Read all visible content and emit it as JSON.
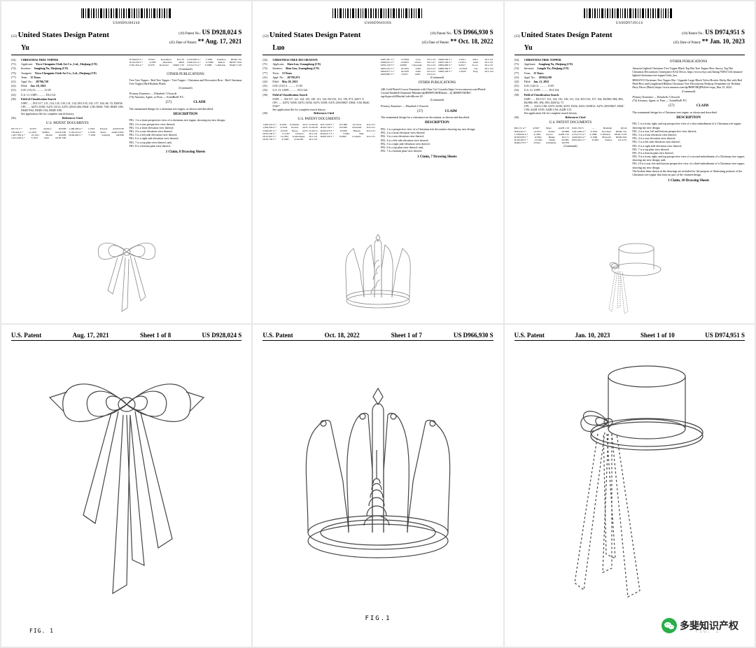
{
  "patents": [
    {
      "barcode_num": "US00D928024S",
      "country": "United States Design Patent",
      "inventor_last": "Yu",
      "patent_no_label": "(10) Patent No.:",
      "patent_no": "US D928,024 S",
      "date_label": "(45) Date of Patent:",
      "date": "** Aug. 17, 2021",
      "title": "CHRISTMAS TREE TOPPER",
      "applicant": "Yiwu Chengmin Cloth Art Co., Ltd., Zhejiang (CN)",
      "inventor": "Songfang Yu, Zhejiang (CN)",
      "assignee": "Yiwu Chengmin Cloth Art Co., Ltd., Zhejiang (CN)",
      "term": "15 Years",
      "appl_no": "29/766,728",
      "filed": "Jan. 18, 2021",
      "loc": "LOC (13) Cl. .......... 11-05",
      "uscl": "U.S. Cl. USPC .......... D11/121",
      "fcs_label": "Field of Classification Search",
      "fcs": "USPC ..... D11/117, 121, 124, 125, 130, 131, 132; D11/133, 142, 157, 164, 66, 74; D28/56",
      "cpc": "CPC ..... A47G 33/00; A47G 33/12; A47G 2033/1266; D04C 1/00; D04C 7/00; D04D 1/00; D04D 9/02; D04D 1/04; D04D 3/00",
      "other_hdr": "OTHER PUBLICATIONS",
      "other": "Tree Tree Topper - Red Tree Topper - Tree Topper - Christmas and Decorative Bow - Red Christmas Tree Topper (Red Buffalo Plaid)",
      "examiner": "Primary Examiner — Elizabeth J Oswecki",
      "attorney": "(74) Attorney, Agent, or Firm — ScienBiziP, P.C.",
      "claim_hdr": "CLAIM",
      "claim": "The ornamental design for a christmas tree topper, as shown and described.",
      "desc_hdr": "DESCRIPTION",
      "desc": [
        "FIG. 1 is a front perspective view of a christmas tree topper, showing my new design;",
        "FIG. 2 is a rear perspective view thereof;",
        "FIG. 3 is a front elevation view thereof;",
        "FIG. 4 is a rear elevation view thereof;",
        "FIG. 5 is a left side elevation view thereof;",
        "FIG. 6 is a right side elevation view thereof;",
        "FIG. 7 is a top plan view thereof; and,",
        "FIG. 8 is a bottom plan view thereof."
      ],
      "claims_sheets": "1 Claim, 8 Drawing Sheets",
      "refs_hdr": "References Cited",
      "refs_sub": "U.S. PATENT DOCUMENTS",
      "refs": [
        [
          "D5,751 S *",
          "4/1872",
          "Wallace",
          "................",
          "D2/608"
        ],
        [
          "195,826 A *",
          "12/1847",
          "Shiffler",
          "................",
          "A41D 6/00"
        ],
        [
          "1,007,786 A *",
          "10/1911",
          "Martin",
          "................",
          "D2/608"
        ],
        [
          "1,651,428 A *",
          "5/1913",
          "Statz",
          "................",
          "A41B 3/00"
        ],
        [
          "1,480,406 A *",
          "1/1924",
          "Preston",
          "................",
          "A45D 8/36"
        ],
        [
          "2,185,416 A *",
          "1/1938",
          "Platts",
          "................",
          "A44D 2/002"
        ],
        [
          "D166,628 S *",
          "7/1950",
          "Salzberg",
          "................",
          "D8/388"
        ],
        [
          "D126,843 S *",
          "9/1941",
          "Rosenman",
          "................",
          "D11/76"
        ],
        [
          "D142,239 S *",
          "4/1907",
          "Oberman",
          "................",
          "428/9"
        ],
        [
          "3,391,264 A *",
          "3/1970",
          "Rowland",
          "................",
          "D04D 7/10"
        ],
        [
          "4,139,938 A *",
          "7/1982",
          "Kamiryo",
          "................",
          "D04D 7/10"
        ],
        [
          "4,566,192 A *",
          "11/1986",
          "Killow",
          "................",
          "B65D 73/16"
        ],
        [
          "4,724,175 A *",
          "3/1988",
          "LaMourie",
          "................",
          "B44D 7/105"
        ]
      ],
      "sheet_header_left": "U.S. Patent",
      "sheet_date": "Aug. 17, 2021",
      "sheet_info": "Sheet 1 of 8",
      "sheet_patno": "US D928,024 S",
      "fig_label": "FIG. 1"
    },
    {
      "barcode_num": "US00D966930S",
      "country": "United States Design Patent",
      "inventor_last": "Luo",
      "patent_no_label": "(10) Patent No.:",
      "patent_no": "US D966,930 S",
      "date_label": "(45) Date of Patent:",
      "date": "** Oct. 18, 2022",
      "title": "CHRISTMAS TREE DECORATION",
      "applicant": "Shen Luo, Guangdong (CN)",
      "inventor": "Shen Luo, Guangdong (CN)",
      "term": "15 Years",
      "appl_no": "29/785,973",
      "filed": "May 28, 2021",
      "loc": "LOC (13) Cl. .......... 11-05",
      "uscl": "U.S. Cl. USPC .......... D11/124",
      "fcs_label": "Field of Classification Search",
      "fcs": "USPC ..... D2/117, 121, 124, 125, 130, 131, 132; D2/133, 131, 139, 871; 428/7, 8",
      "cpc": "CPC ..... A47G 33/00; A47G 33/04; A47G 33/08; A47G 2033/0827; D04C 1/04; B44C 5/04/7",
      "other_hdr": "OTHER PUBLICATIONS",
      "other": "24K Gold Plated Crown Ornament with Clear Cut Crystals (https://www.amazon.com/Plated-Crystal-Studded-Ornament-Matashi/dp/B008PCHZRSauth... dl_B008PCHZRS?tag=hyprock206ushsCode-dlhcart-20",
      "examiner": "Primary Examiner — Elizabeth J Oswecki",
      "claim_hdr": "CLAIM",
      "claim": "The ornamental design for a christmas tree decoration, as shown and described.",
      "desc_hdr": "DESCRIPTION",
      "desc": [
        "FIG. 1 is a perspective view of a Christmas tree decoration showing my new design;",
        "FIG. 2 is a front elevation view thereof;",
        "FIG. 3 is a rear elevation view thereof;",
        "FIG. 4 is a left side elevation view thereof;",
        "FIG. 5 is a right side elevation view thereof;",
        "FIG. 6 is a top plan view thereof; and,",
        "FIG. 7 is a bottom plan view thereof."
      ],
      "claims_sheets": "1 Claim, 7 Drawing Sheets",
      "refs_hdr": "References Cited",
      "refs_sub": "U.S. PATENT DOCUMENTS",
      "refs": [
        [
          "1,963,453 A *",
          "6/1934",
          "Formsma",
          "................",
          "A47C 21/04/28"
        ],
        [
          "1,963,456 A *",
          "9/1934",
          "Prosser",
          "................",
          "A47C 21/04/28"
        ],
        [
          "2,846,087 A *",
          "6/1935",
          "Hosea",
          "................",
          "A47C 21/04/15"
        ],
        [
          "D162,358 S *",
          "11/1937",
          "Johnson",
          "................",
          "D11/121"
        ],
        [
          "D142,822 S *",
          "12/1952",
          "Komarinsky",
          "................",
          "D11/121"
        ],
        [
          "D126,756 S *",
          "9/1960",
          "Schaeffer",
          "................",
          "D11/121"
        ],
        [
          "D217,636 S *",
          "10/1966",
          "Jacobson",
          "................",
          "D11/121"
        ],
        [
          "D229,740 S *",
          "10/1996",
          "Karabum",
          "................",
          "D11/121"
        ],
        [
          "D432,678 S *",
          "8/1999",
          "Hansen",
          "................",
          "D11/131"
        ],
        [
          "D436,417 S *",
          "5/2001",
          "Shin",
          "................",
          "—"
        ],
        [
          "D463,543 S *",
          "8/2002",
          "Lonnello",
          "................",
          "D11/131"
        ],
        [
          "D487,301 S *",
          "12/2004",
          "Lack",
          "................",
          "D11/131"
        ],
        [
          "D498,541 S *",
          "12/2004",
          "Ubeda",
          "................",
          "D11/117"
        ],
        [
          "D595,156 S *",
          "4/2008",
          "Choweski",
          "................",
          "D11/121"
        ],
        [
          "D625,222 S *",
          "10/2010",
          "Adlst",
          "................",
          "D11/121"
        ],
        [
          "D626,077 S *",
          "10/2010",
          "Adlst",
          "................",
          "D11/121"
        ],
        [
          "D639,885 S *",
          "3/2011",
          "Adlst",
          "................",
          "D11/121"
        ],
        [
          "D648,549 S *",
          "2/2011",
          "Adlst",
          "................",
          "D11/121"
        ],
        [
          "D655,549 S *",
          "12/2011",
          "Adlst",
          "................",
          "D11/121"
        ],
        [
          "D804,090 S *",
          "9/2017",
          "Zocco",
          "................",
          "D11/121"
        ],
        [
          "D869,390 S *",
          "12/2019",
          "Zas",
          "................",
          "D11/124"
        ],
        [
          "D905,228 S *",
          "1/2020",
          "Tang",
          "................",
          "D11/124"
        ]
      ],
      "sheet_header_left": "U.S. Patent",
      "sheet_date": "Oct. 18, 2022",
      "sheet_info": "Sheet 1 of 7",
      "sheet_patno": "US D966,930 S",
      "fig_label": "FIG.1"
    },
    {
      "barcode_num": "US00D974951S",
      "country": "United States Design Patent",
      "inventor_last": "Yu",
      "patent_no_label": "(10) Patent No.:",
      "patent_no": "US D974,951 S",
      "date_label": "(45) Date of Patent:",
      "date": "** Jan. 10, 2023",
      "title": "CHRISTMAS TREE TOPPER",
      "applicant": "Songfang Yu, Zhejiang (CN)",
      "inventor": "Longde Yu, Zhejiang (CN)",
      "term": "15 Years",
      "appl_no": "29/824,109",
      "filed": "Jan. 21, 2022",
      "loc": "LOC (14) Cl. .......... 11-05",
      "uscl": "U.S. Cl. USPC .......... D11/124",
      "fcs_label": "Field of Classification Search",
      "fcs": "USPC ..... D11/117, 121, 124, 125, 130, 131, 132; D11/133, 157, 164; D2/865, 884, 865; D2/886, 891, 892, 893; D28/34, 73",
      "cpc": "CPC ..... A41G 1/00; A47G 33/00; A47G 33/04; A41G 33/0813; A47G 2033/0827; D04C 1/00; A42B 1/019; A42B 1/04; A42B 1/21",
      "other_hdr": "OTHER PUBLICATIONS",
      "other": "Amazon Lighted Christmas Tree Topper Black Top Hat Tree Topper Bow Snowy Top Hat Christmas Decorations Centerpiece KAZ Decor, https://www.etsy.com/listing/768517241/amazon-lighted-christmas-tree-topper?click_key",
      "other2": "HMASYO Christmas Tree Topper Hat - Upgrade Large Black Velvet Bowler Derby Hat with Red Plaid Bow and Lengthened Ribbon Christmas Tree Decorations Desktop Ornaments for Holiday Party Decor (Black) https://www.amazon.com/dp/B08F3RQPR4/ref=sspa_Mar 15, 2022",
      "examiner": "Primary Examiner — Elisabeth J Oswecki",
      "attorney": "(74) Attorney, Agent, or Firm — ScienBiziP, P.C.",
      "claim_hdr": "CLAIM",
      "claim": "The ornamental design for a Christmas tree topper, as shown and described.",
      "desc_hdr": "DESCRIPTION",
      "desc": [
        "FIG. 1 is a front, right, and top perspective view of a first embodiment of a Christmas tree topper, showing my new design;",
        "FIG. 2 is a rear, left and bottom perspective view thereof;",
        "FIG. 3 is a front elevation view thereof;",
        "FIG. 4 is a rear elevation view thereof;",
        "FIG. 5 is a left side elevation view thereof;",
        "FIG. 6 is a right side elevation view thereof;",
        "FIG. 7 is a top plan view thereof;",
        "FIG. 8 is a bottom plan view thereof;",
        "FIG. 9 is a front, right, and top perspective view of a second embodiment of a Christmas tree topper, showing my new design; and,",
        "FIG. 10 is a rear, left and bottom perspective view of a third embodiment of a Christmas tree topper, showing my new design.",
        "The broken lines shown in the drawings are included for the purpose of illustrating portions of the Christmas tree topper that form no part of the claimed design."
      ],
      "claims_sheets": "1 Claim, 10 Drawing Sheets",
      "refs_hdr": "References Cited",
      "refs_sub": "U.S. PATENT DOCUMENTS",
      "refs": [
        [
          "660,131 A *",
          "4/1907",
          "Mayo",
          "................",
          "A42B 1/18"
        ],
        [
          "D48,240 S *",
          "12/1915",
          "Stabbs",
          "................",
          "D2/866"
        ],
        [
          "1,338,656 A *",
          "3/1956",
          "Lipton",
          "................",
          "A42B 1/22"
        ],
        [
          "D183,638 S *",
          "9/1962",
          "Hedge",
          "................",
          "D11/71"
        ],
        [
          "D129,485 S *",
          "12/1961",
          "Subak",
          "................",
          "D2/881"
        ],
        [
          "D499,279 S *",
          "2/1944",
          "Christman",
          "................",
          "D2/879"
        ],
        [
          "D161,559 S",
          "—",
          "Beatham",
          "................",
          "D2/44"
        ],
        [
          "3,561,268 A *",
          "3/1970",
          "Rowland",
          "................",
          "D04D 7/10"
        ],
        [
          "4,724,175 A *",
          "2/1988",
          "LaMourie",
          "................",
          "D04D 7/105"
        ],
        [
          "4,940,632 A *",
          "2/1990",
          "McGrath",
          "................",
          "D04D 9/02"
        ],
        [
          "D332,402 S *",
          "3/1993",
          "Stables",
          "................",
          "D11/131"
        ]
      ],
      "sheet_header_left": "U.S. Patent",
      "sheet_date": "Jan. 10, 2023",
      "sheet_info": "Sheet 1 of 10",
      "sheet_patno": "US D974,951 S",
      "fig_label": "FIG. 1"
    }
  ],
  "watermark": {
    "text": "多斐知识产权"
  },
  "colors": {
    "page_bg": "#ffffff",
    "body_bg": "#e8e8e8",
    "text": "#000000",
    "wm_green": "#2aae4a"
  }
}
